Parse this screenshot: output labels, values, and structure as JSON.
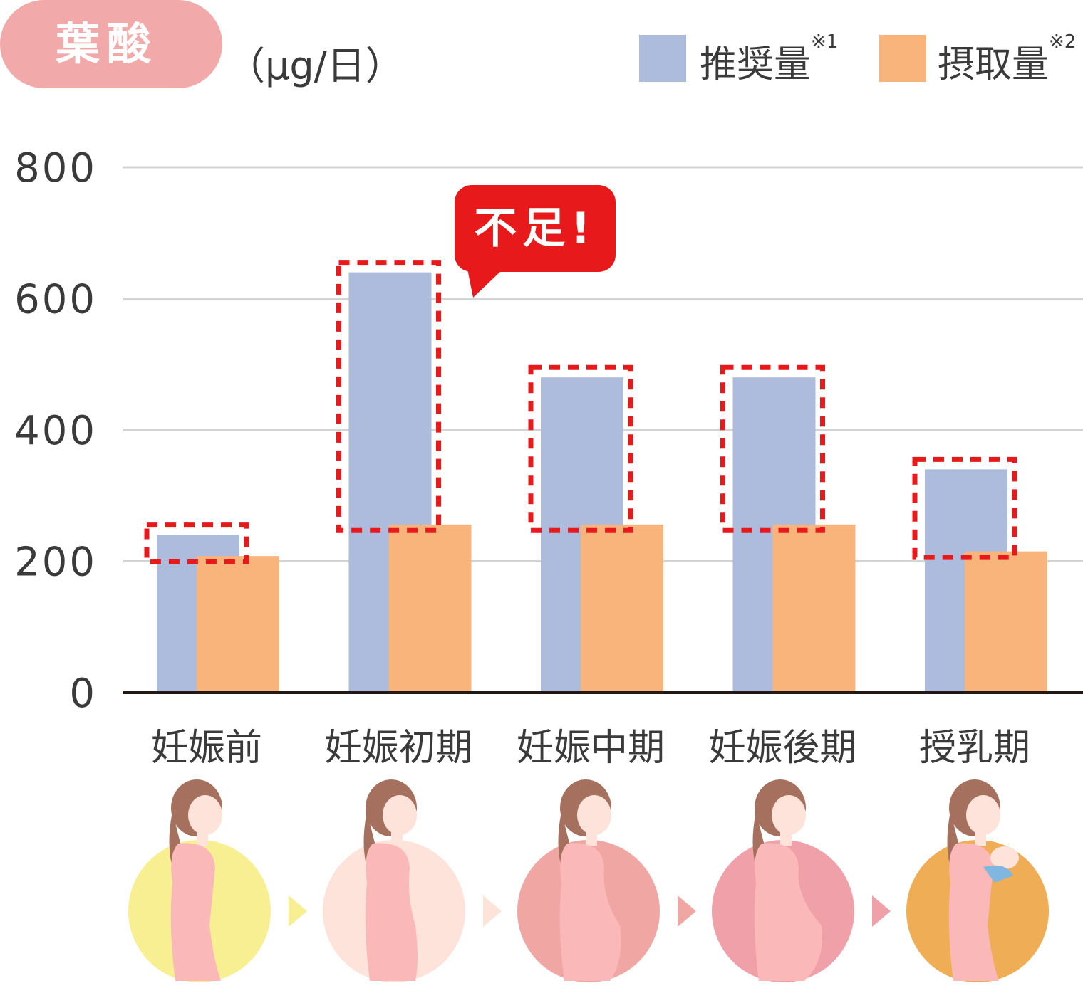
{
  "header": {
    "nutrient_label": "葉酸",
    "unit_label": "（μg/日）"
  },
  "legend": [
    {
      "label": "推奨量",
      "note": "※1",
      "color": "#adbbdd"
    },
    {
      "label": "摂取量",
      "note": "※2",
      "color": "#f9b47c"
    }
  ],
  "callout": {
    "text": "不足!",
    "color": "#e8191b"
  },
  "stages": [
    {
      "name": "妊娠前",
      "circle_color": "#f8ef93",
      "illustration": "woman-silhouette"
    },
    {
      "name": "妊娠初期",
      "circle_color": "#fde3da",
      "illustration": "pregnant-woman-early"
    },
    {
      "name": "妊娠中期",
      "circle_color": "#f0a7a3",
      "illustration": "pregnant-woman-mid"
    },
    {
      "name": "妊娠後期",
      "circle_color": "#f0a0a8",
      "illustration": "pregnant-woman-late"
    },
    {
      "name": "授乳期",
      "circle_color": "#efad55",
      "illustration": "woman-holding-baby"
    }
  ],
  "chart_data": {
    "type": "bar",
    "categories": [
      "妊娠前",
      "妊娠初期",
      "妊娠中期",
      "妊娠後期",
      "授乳期"
    ],
    "series": [
      {
        "name": "推奨量",
        "values": [
          240,
          640,
          480,
          480,
          340
        ],
        "color": "#adbbdd"
      },
      {
        "name": "摂取量",
        "values": [
          208,
          256,
          256,
          256,
          215
        ],
        "color": "#f9b47c"
      }
    ],
    "ylim": [
      0,
      800
    ],
    "yticks": [
      "0",
      "200",
      "400",
      "600",
      "800"
    ],
    "grid": true,
    "highlight": "shortfall between 推奨量 and 摂取量 outlined with red dashed boxes",
    "legend_position": "top-right"
  }
}
